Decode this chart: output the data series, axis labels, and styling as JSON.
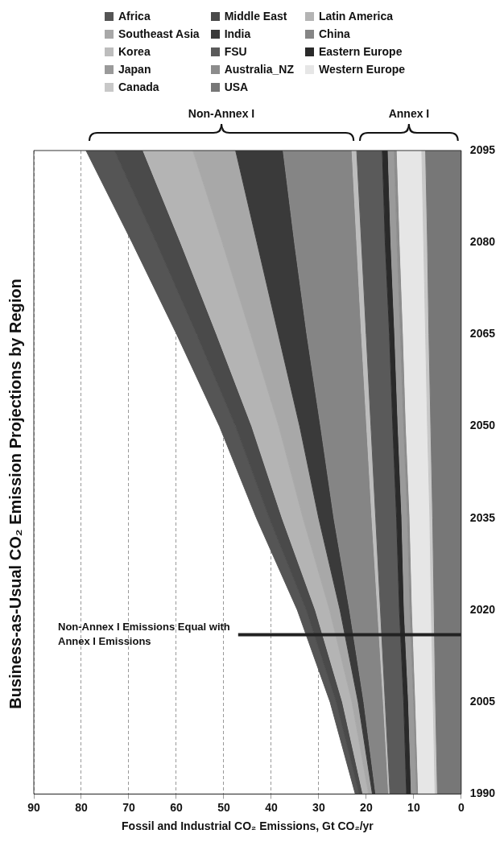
{
  "chart_data": {
    "type": "area",
    "title": "Business-as-Usual CO₂ Emission Projections by Region",
    "xlabel": "Fossil and Industrial CO₂ Emissions, Gt CO₂/yr",
    "stacked": true,
    "orientation": "horizontal",
    "x": [
      1990,
      2005,
      2020,
      2035,
      2050,
      2065,
      2080,
      2095
    ],
    "ylim": [
      1990,
      2095
    ],
    "yticks": [
      1990,
      2005,
      2020,
      2035,
      2050,
      2065,
      2080,
      2095
    ],
    "xlim": [
      90,
      0
    ],
    "xticks": [
      90,
      80,
      70,
      60,
      50,
      40,
      30,
      20,
      10,
      0
    ],
    "grid": "x",
    "legend": "top",
    "marker": "none",
    "series": [
      {
        "name": "USA",
        "color": "#777777",
        "values": [
          5.0,
          5.4,
          5.7,
          6.0,
          6.4,
          6.8,
          7.1,
          7.5
        ]
      },
      {
        "name": "Canada",
        "color": "#c8c8c8",
        "values": [
          0.5,
          0.5,
          0.6,
          0.6,
          0.7,
          0.7,
          0.8,
          0.8
        ]
      },
      {
        "name": "Western Europe",
        "color": "#e6e6e6",
        "values": [
          3.5,
          3.7,
          4.0,
          4.2,
          4.5,
          4.7,
          5.0,
          5.2
        ]
      },
      {
        "name": "Australia_NZ",
        "color": "#8c8c8c",
        "values": [
          0.4,
          0.4,
          0.5,
          0.5,
          0.5,
          0.6,
          0.6,
          0.6
        ]
      },
      {
        "name": "Japan",
        "color": "#9a9a9a",
        "values": [
          1.1,
          1.1,
          1.2,
          1.2,
          1.2,
          1.2,
          1.3,
          1.3
        ]
      },
      {
        "name": "Eastern Europe",
        "color": "#2a2a2a",
        "values": [
          1.0,
          1.0,
          1.0,
          1.1,
          1.1,
          1.1,
          1.2,
          1.2
        ]
      },
      {
        "name": "FSU",
        "color": "#5a5a5a",
        "values": [
          3.5,
          3.9,
          4.0,
          4.4,
          4.6,
          4.9,
          5.0,
          5.4
        ]
      },
      {
        "name": "Korea",
        "color": "#bdbdbd",
        "values": [
          0.3,
          0.4,
          0.6,
          0.8,
          0.9,
          1.0,
          1.0,
          1.0
        ]
      },
      {
        "name": "China",
        "color": "#858585",
        "values": [
          2.7,
          4.1,
          5.9,
          8.0,
          9.7,
          11.5,
          13.1,
          14.5
        ]
      },
      {
        "name": "India",
        "color": "#3a3a3a",
        "values": [
          0.7,
          1.2,
          2.0,
          3.2,
          4.4,
          6.0,
          7.9,
          10.0
        ]
      },
      {
        "name": "Southeast Asia",
        "color": "#a8a8a8",
        "values": [
          0.8,
          1.3,
          2.2,
          3.3,
          4.4,
          5.8,
          7.3,
          9.0
        ]
      },
      {
        "name": "Latin America",
        "color": "#b4b4b4",
        "values": [
          1.2,
          2.0,
          3.0,
          4.4,
          5.7,
          7.2,
          8.8,
          10.5
        ]
      },
      {
        "name": "Middle East",
        "color": "#4a4a4a",
        "values": [
          0.8,
          1.3,
          1.9,
          2.7,
          3.4,
          4.2,
          5.1,
          6.0
        ]
      },
      {
        "name": "Africa",
        "color": "#555555",
        "values": [
          0.8,
          1.3,
          1.9,
          2.7,
          3.4,
          4.2,
          5.1,
          6.0
        ]
      }
    ],
    "ref_lines": [
      {
        "axis": "y",
        "value": 2016,
        "label": "Non-Annex I Emissions Equal with Annex I Emissions",
        "color": "#222222"
      }
    ],
    "annotations": [
      {
        "text": "Annex I",
        "x": 11,
        "y": 2095
      },
      {
        "text": "Non-Annex I",
        "x": 50.5,
        "y": 2095
      }
    ]
  }
}
